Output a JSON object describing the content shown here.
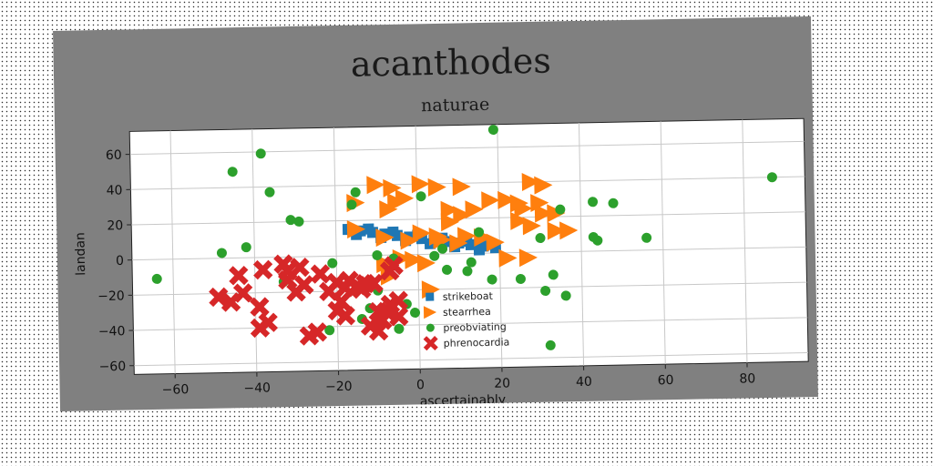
{
  "chart_data": {
    "type": "scatter",
    "title": "acanthodes",
    "subtitle": "naturae",
    "xlabel": "ascertainably",
    "ylabel": "landan",
    "xlim": [
      -70,
      95
    ],
    "ylim": [
      -65,
      73
    ],
    "xticks": [
      -60,
      -40,
      -20,
      0,
      20,
      40,
      60,
      80
    ],
    "yticks": [
      -60,
      -40,
      -20,
      0,
      20,
      40,
      60
    ],
    "grid": true,
    "legend_position": "lower-center",
    "series": [
      {
        "name": "strikeboat",
        "marker": "square",
        "color": "#1f77b4",
        "points": [
          [
            -17,
            15
          ],
          [
            -14,
            14
          ],
          [
            -11,
            13
          ],
          [
            -8,
            12
          ],
          [
            -5,
            11
          ],
          [
            -2,
            10
          ],
          [
            1,
            9
          ],
          [
            4,
            8
          ],
          [
            7,
            7
          ],
          [
            10,
            6
          ],
          [
            13,
            5
          ],
          [
            16,
            4
          ],
          [
            19,
            3
          ],
          [
            -15,
            12
          ],
          [
            -9,
            10
          ],
          [
            -3,
            8
          ],
          [
            3,
            6
          ],
          [
            9,
            4
          ],
          [
            15,
            2
          ],
          [
            18,
            5
          ],
          [
            -12,
            15
          ],
          [
            -6,
            13
          ],
          [
            0,
            11
          ],
          [
            6,
            9
          ],
          [
            12,
            7
          ]
        ]
      },
      {
        "name": "stearrhea",
        "marker": "triangle-right",
        "color": "#ff7f0e",
        "points": [
          [
            -10,
            40
          ],
          [
            -6,
            38
          ],
          [
            -3,
            32
          ],
          [
            1,
            40
          ],
          [
            5,
            38
          ],
          [
            11,
            38
          ],
          [
            -15,
            30
          ],
          [
            -7,
            26
          ],
          [
            -5,
            30
          ],
          [
            8,
            25
          ],
          [
            11,
            22
          ],
          [
            14,
            25
          ],
          [
            18,
            30
          ],
          [
            22,
            30
          ],
          [
            25,
            28
          ],
          [
            26,
            25
          ],
          [
            30,
            28
          ],
          [
            31,
            22
          ],
          [
            34,
            22
          ],
          [
            28,
            40
          ],
          [
            31,
            38
          ],
          [
            34,
            12
          ],
          [
            37,
            12
          ],
          [
            28,
            15
          ],
          [
            25,
            18
          ],
          [
            -15,
            15
          ],
          [
            -8,
            10
          ],
          [
            -2,
            8
          ],
          [
            1,
            12
          ],
          [
            6,
            8
          ],
          [
            10,
            6
          ],
          [
            12,
            10
          ],
          [
            16,
            9
          ],
          [
            19,
            6
          ],
          [
            22,
            -3
          ],
          [
            27,
            -3
          ],
          [
            -8,
            -5
          ],
          [
            -4,
            -2
          ],
          [
            -1,
            -3
          ],
          [
            2,
            -5
          ],
          [
            -7,
            -12
          ],
          [
            3,
            -20
          ],
          [
            5,
            10
          ],
          [
            8,
            18
          ]
        ]
      },
      {
        "name": "preobviating",
        "marker": "circle",
        "color": "#2ca02c",
        "points": [
          [
            -64,
            -11
          ],
          [
            -48,
            3
          ],
          [
            -45,
            49
          ],
          [
            -42,
            6
          ],
          [
            -38,
            59
          ],
          [
            -36,
            37
          ],
          [
            -31,
            21
          ],
          [
            -29,
            20
          ],
          [
            -33,
            -14
          ],
          [
            -21,
            -4
          ],
          [
            -16,
            29
          ],
          [
            -15,
            36
          ],
          [
            -12,
            -30
          ],
          [
            -10,
            0
          ],
          [
            -6,
            -2
          ],
          [
            -3,
            -28
          ],
          [
            -1,
            -33
          ],
          [
            1,
            33
          ],
          [
            4,
            -1
          ],
          [
            6,
            3
          ],
          [
            7,
            -9
          ],
          [
            12,
            -10
          ],
          [
            13,
            -5
          ],
          [
            15,
            12
          ],
          [
            18,
            -15
          ],
          [
            19,
            70
          ],
          [
            25,
            -15
          ],
          [
            30,
            8
          ],
          [
            31,
            -22
          ],
          [
            32,
            -53
          ],
          [
            33,
            -13
          ],
          [
            35,
            24
          ],
          [
            36,
            -25
          ],
          [
            43,
            28
          ],
          [
            43,
            8
          ],
          [
            44,
            6
          ],
          [
            48,
            27
          ],
          [
            56,
            7
          ],
          [
            87,
            40
          ],
          [
            -14,
            -36
          ],
          [
            -5,
            -42
          ],
          [
            -22,
            -42
          ],
          [
            -10,
            -20
          ]
        ]
      },
      {
        "name": "phrenocardia",
        "marker": "x",
        "color": "#d62728",
        "points": [
          [
            -49,
            -22
          ],
          [
            -46,
            -25
          ],
          [
            -44,
            -10
          ],
          [
            -43,
            -20
          ],
          [
            -39,
            -28
          ],
          [
            -38,
            -7
          ],
          [
            -37,
            -37
          ],
          [
            -39,
            -40
          ],
          [
            -33,
            -4
          ],
          [
            -32,
            -13
          ],
          [
            -32,
            -8
          ],
          [
            -29,
            -6
          ],
          [
            -28,
            -16
          ],
          [
            -25,
            -43
          ],
          [
            -20,
            -15
          ],
          [
            -20,
            -31
          ],
          [
            -19,
            -26
          ],
          [
            -18,
            -18
          ],
          [
            -17,
            -14
          ],
          [
            -15,
            -17
          ],
          [
            -14,
            -19
          ],
          [
            -13,
            -16
          ],
          [
            -11,
            -16
          ],
          [
            -10,
            -32
          ],
          [
            -8,
            -32
          ],
          [
            -7,
            -9
          ],
          [
            -7,
            -28
          ],
          [
            -5,
            -35
          ],
          [
            -5,
            -26
          ],
          [
            -9,
            -37
          ],
          [
            -10,
            -43
          ],
          [
            -24,
            -10
          ],
          [
            -22,
            -20
          ],
          [
            -27,
            -45
          ],
          [
            -18,
            -34
          ],
          [
            -6,
            -6
          ],
          [
            -12,
            -40
          ],
          [
            -30,
            -20
          ]
        ]
      }
    ]
  }
}
